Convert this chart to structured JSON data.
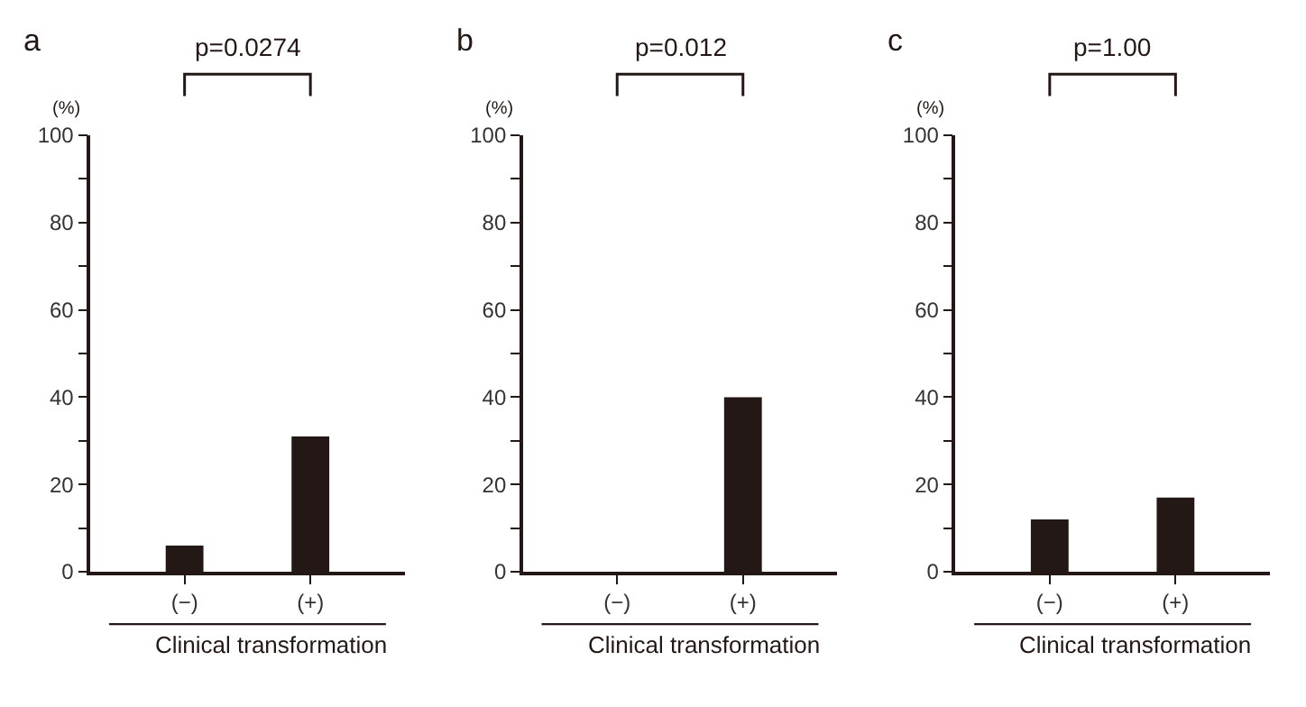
{
  "chart_data": [
    {
      "type": "bar",
      "title": "a",
      "ylabel": "(%)",
      "xlabel": "Clinical transformation",
      "categories": [
        "(−)",
        "(+)"
      ],
      "values": [
        6,
        31
      ],
      "color": "#231815",
      "ylim": [
        0,
        100
      ],
      "yticks": [
        0,
        {
          "value": 10,
          "label": null
        },
        20,
        {
          "value": 30,
          "label": null
        },
        40,
        {
          "value": 50,
          "label": null
        },
        60,
        {
          "value": 70,
          "label": null
        },
        80,
        {
          "value": 90,
          "label": null
        },
        100
      ],
      "annotations": [
        "p=0.0274"
      ]
    },
    {
      "type": "bar",
      "title": "b",
      "ylabel": "(%)",
      "xlabel": "Clinical transformation",
      "categories": [
        "(−)",
        "(+)"
      ],
      "values": [
        0,
        40
      ],
      "color": "#231815",
      "ylim": [
        0,
        100
      ],
      "yticks": [
        0,
        {
          "value": 10,
          "label": null
        },
        20,
        {
          "value": 30,
          "label": null
        },
        40,
        {
          "value": 50,
          "label": null
        },
        60,
        {
          "value": 70,
          "label": null
        },
        80,
        {
          "value": 90,
          "label": null
        },
        100
      ],
      "annotations": [
        "p=0.012"
      ]
    },
    {
      "type": "bar",
      "title": "c",
      "ylabel": "(%)",
      "xlabel": "Clinical transformation",
      "categories": [
        "(−)",
        "(+)"
      ],
      "values": [
        12,
        17
      ],
      "color": "#231815",
      "ylim": [
        0,
        100
      ],
      "yticks": [
        0,
        {
          "value": 10,
          "label": null
        },
        20,
        {
          "value": 30,
          "label": null
        },
        40,
        {
          "value": 50,
          "label": null
        },
        60,
        {
          "value": 70,
          "label": null
        },
        80,
        {
          "value": 90,
          "label": null
        },
        100
      ],
      "annotations": [
        "p=1.00"
      ]
    }
  ]
}
